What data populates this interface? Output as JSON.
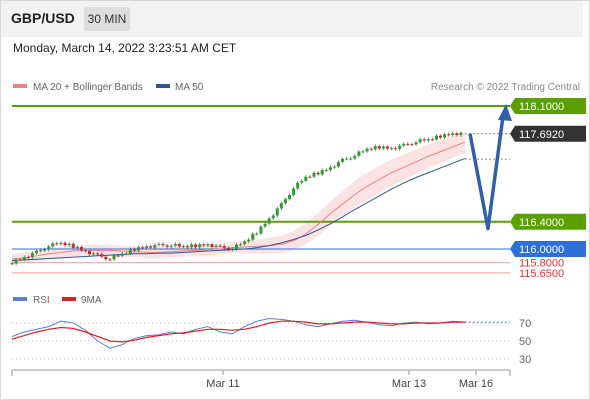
{
  "header": {
    "symbol": "GBP/USD",
    "timeframe": "30 MIN",
    "datetime": "Monday, March 14, 2022 3:23:51 AM CET"
  },
  "legend": {
    "bollinger": {
      "label": "MA 20 + Bollinger Bands",
      "color": "#f08080"
    },
    "ma50": {
      "label": "MA 50",
      "color": "#2f5597"
    },
    "credit": "Research © 2022 Trading Central"
  },
  "rsi_legend": {
    "rsi": {
      "label": "RSI",
      "color": "#5b7fd6"
    },
    "ma9": {
      "label": "9MA",
      "color": "#e02020"
    }
  },
  "colors": {
    "resistance": "#5aa000",
    "support": "#2e6fd8",
    "red_level": "#e83030",
    "arrow": "#2f5fa8",
    "last_price": "#333333",
    "bull": "#2e9e2e",
    "bear": "#c62828"
  },
  "chart_data": [
    {
      "type": "line",
      "title": "",
      "x_ticks": [
        "Mar 11",
        "Mar 13",
        "Mar 16"
      ],
      "ylim": [
        115.6,
        118.2
      ],
      "levels": [
        {
          "value": 118.1,
          "label": "118.1000",
          "kind": "resistance"
        },
        {
          "value": 117.692,
          "label": "117.6920",
          "kind": "last_price"
        },
        {
          "value": 116.4,
          "label": "116.4000",
          "kind": "pivot"
        },
        {
          "value": 116.0,
          "label": "116.0000",
          "kind": "support"
        },
        {
          "value": 115.8,
          "label": "115.8000",
          "kind": "support"
        },
        {
          "value": 115.65,
          "label": "115.6500",
          "kind": "support"
        }
      ],
      "series": [
        {
          "name": "MA 20 + Bollinger Bands",
          "values": [
            115.85,
            115.87,
            115.9,
            115.93,
            115.95,
            115.97,
            115.98,
            115.98,
            115.98,
            115.97,
            115.96,
            115.95,
            115.95,
            115.96,
            115.97,
            115.98,
            115.99,
            116.0,
            116.02,
            116.03,
            116.04,
            116.05,
            116.07,
            116.12,
            116.22,
            116.36,
            116.52,
            116.66,
            116.8,
            116.92,
            117.02,
            117.12,
            117.2,
            117.28,
            117.36,
            117.43,
            117.5,
            117.57
          ]
        },
        {
          "name": "MA 50",
          "values": [
            115.83,
            115.84,
            115.85,
            115.86,
            115.87,
            115.88,
            115.89,
            115.9,
            115.91,
            115.92,
            115.93,
            115.93,
            115.94,
            115.94,
            115.95,
            115.96,
            115.97,
            115.98,
            115.99,
            116.0,
            116.02,
            116.05,
            116.09,
            116.14,
            116.2,
            116.28,
            116.37,
            116.47,
            116.58,
            116.68,
            116.78,
            116.88,
            116.97,
            117.05,
            117.12,
            117.19,
            117.26,
            117.33
          ]
        },
        {
          "name": "close",
          "values": [
            115.81,
            115.88,
            115.95,
            116.05,
            116.08,
            116.04,
            115.97,
            115.9,
            115.86,
            115.92,
            116.0,
            116.04,
            116.05,
            116.06,
            116.03,
            116.05,
            116.07,
            116.02,
            116.01,
            116.1,
            116.25,
            116.45,
            116.65,
            116.9,
            117.05,
            117.12,
            117.2,
            117.3,
            117.38,
            117.46,
            117.5,
            117.48,
            117.52,
            117.58,
            117.6,
            117.66,
            117.7,
            117.692
          ]
        }
      ],
      "forecast_path": [
        117.692,
        116.3,
        118.1
      ]
    },
    {
      "type": "line",
      "title": "",
      "ylim": [
        20,
        85
      ],
      "y_ticks": [
        70,
        50,
        30
      ],
      "series": [
        {
          "name": "RSI",
          "values": [
            55,
            60,
            63,
            66,
            72,
            70,
            62,
            50,
            42,
            46,
            53,
            56,
            57,
            60,
            58,
            63,
            66,
            60,
            58,
            66,
            72,
            75,
            74,
            72,
            68,
            66,
            69,
            72,
            73,
            71,
            68,
            67,
            70,
            71,
            69,
            70,
            72,
            71
          ]
        },
        {
          "name": "9MA",
          "values": [
            52,
            56,
            60,
            63,
            65,
            64,
            60,
            55,
            50,
            49,
            51,
            54,
            56,
            58,
            59,
            61,
            63,
            63,
            62,
            63,
            66,
            70,
            72,
            72,
            71,
            69,
            69,
            70,
            71,
            71,
            70,
            69,
            69,
            70,
            70,
            70,
            71,
            71
          ]
        }
      ]
    }
  ]
}
